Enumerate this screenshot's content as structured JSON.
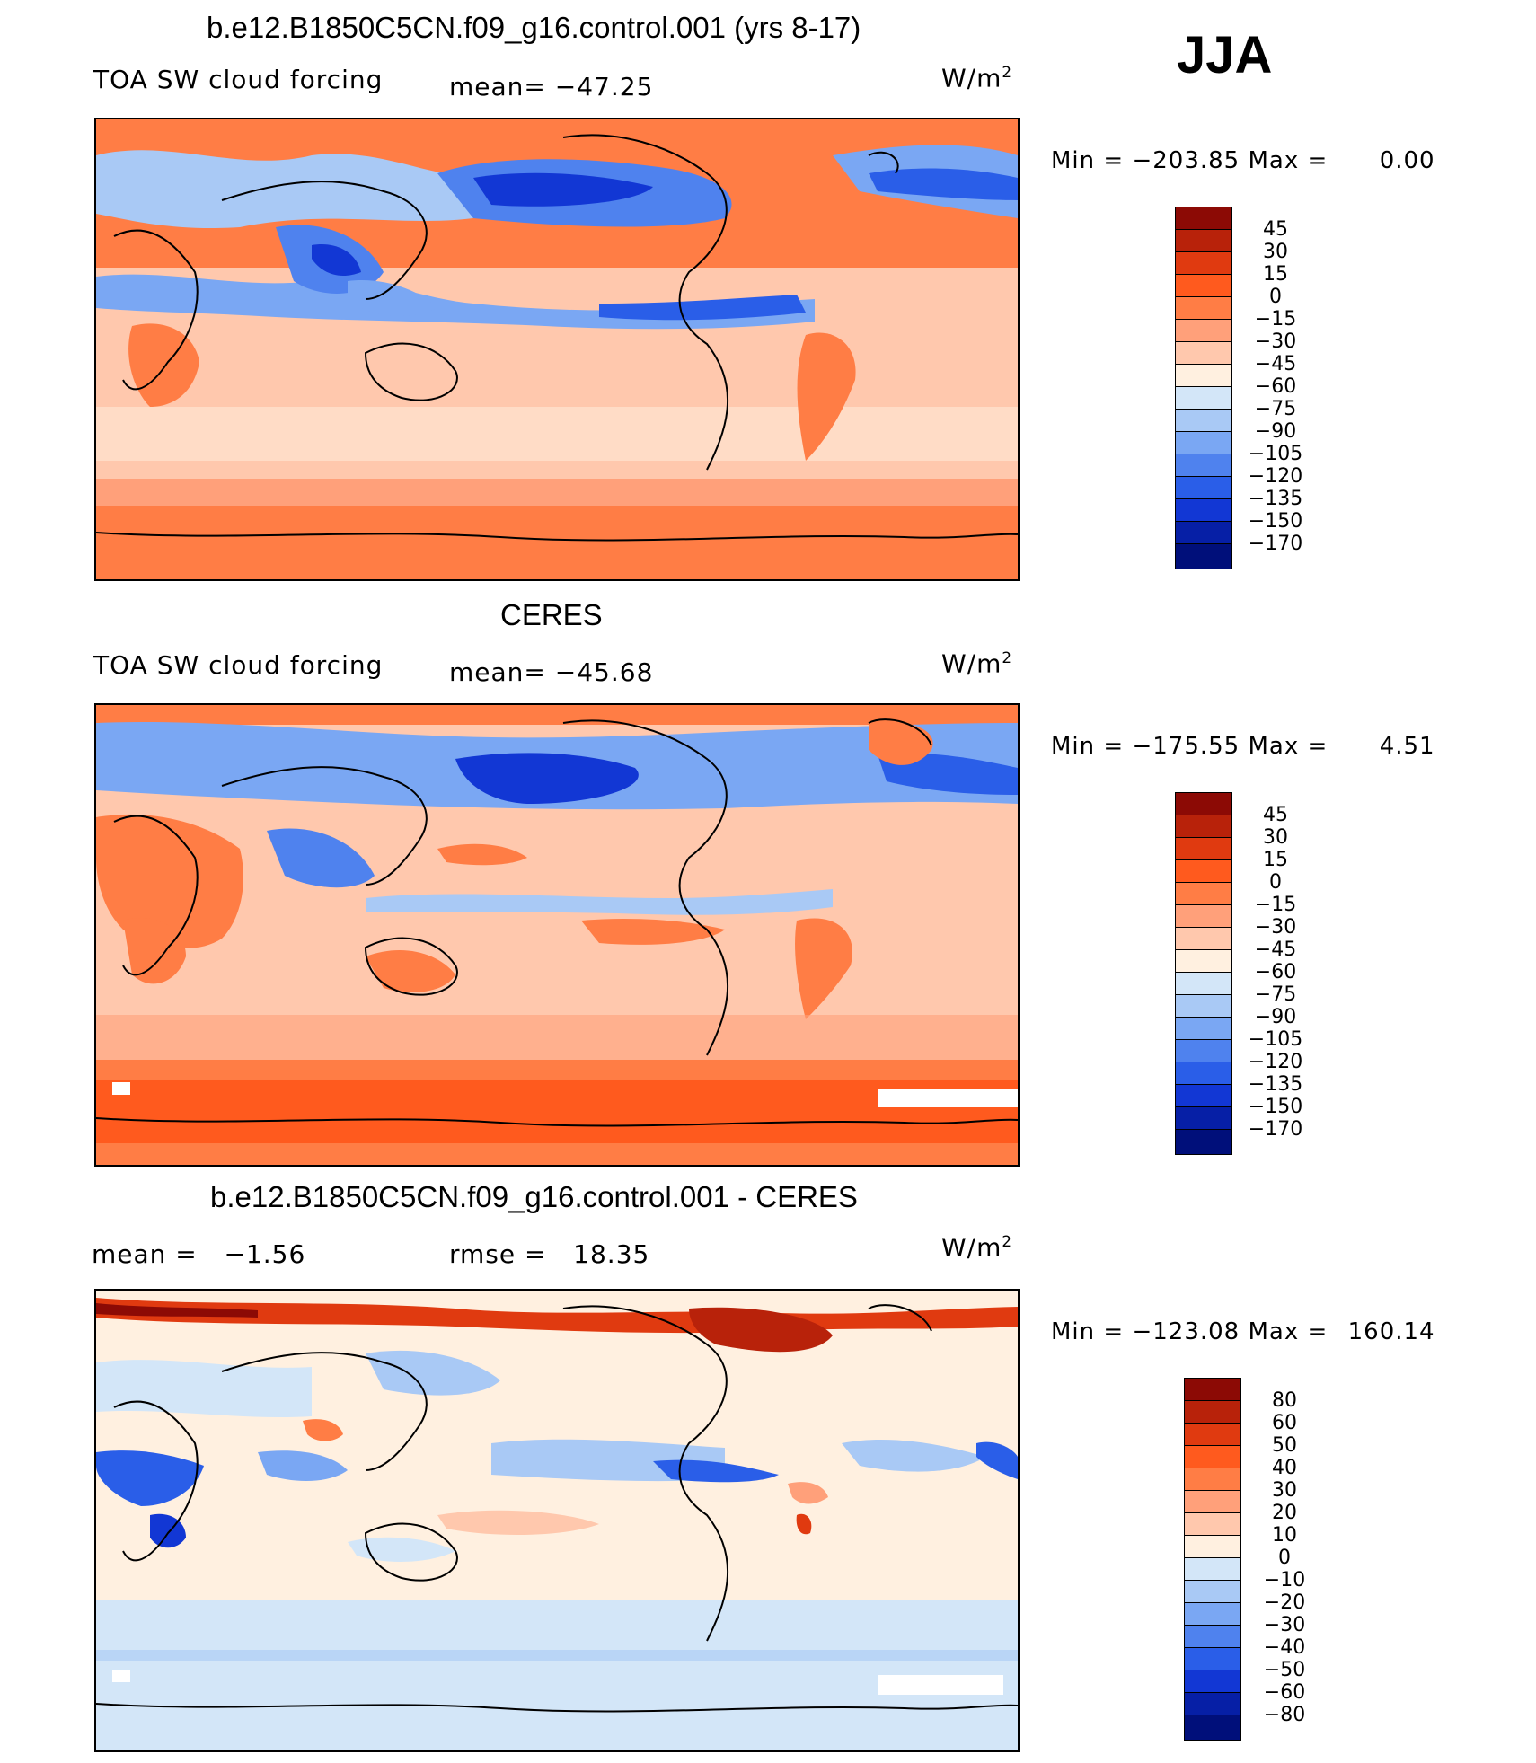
{
  "season": "JJA",
  "panels": [
    {
      "id": "model",
      "title": "b.e12.B1850C5CN.f09_g16.control.001 (yrs 8-17)",
      "left_label": "TOA SW cloud forcing",
      "stat_label": "mean= −47.25",
      "units": "W/m",
      "units_sup": "2",
      "min_label": "Min",
      "min_value": "−203.85",
      "max_label": "Max",
      "max_value": "0.00",
      "colorbar": {
        "labels": [
          "45",
          "30",
          "15",
          "0",
          "−15",
          "−30",
          "−45",
          "−60",
          "−75",
          "−90",
          "−105",
          "−120",
          "−135",
          "−150",
          "−170"
        ],
        "colors": [
          "#8c0a05",
          "#b8220a",
          "#e03a10",
          "#ff5a1e",
          "#ff7d45",
          "#ffa07a",
          "#ffc8ad",
          "#fff0e0",
          "#d3e6f8",
          "#a9c9f5",
          "#7aa7f3",
          "#4f82ee",
          "#2a5ee8",
          "#1237d4",
          "#061fa6",
          "#000f7a"
        ]
      }
    },
    {
      "id": "obs",
      "title": "CERES",
      "left_label": "TOA SW cloud forcing",
      "stat_label": "mean= −45.68",
      "units": "W/m",
      "units_sup": "2",
      "min_label": "Min",
      "min_value": "−175.55",
      "max_label": "Max",
      "max_value": "4.51",
      "colorbar": {
        "labels": [
          "45",
          "30",
          "15",
          "0",
          "−15",
          "−30",
          "−45",
          "−60",
          "−75",
          "−90",
          "−105",
          "−120",
          "−135",
          "−150",
          "−170"
        ],
        "colors": [
          "#8c0a05",
          "#b8220a",
          "#e03a10",
          "#ff5a1e",
          "#ff7d45",
          "#ffa07a",
          "#ffc8ad",
          "#fff0e0",
          "#d3e6f8",
          "#a9c9f5",
          "#7aa7f3",
          "#4f82ee",
          "#2a5ee8",
          "#1237d4",
          "#061fa6",
          "#000f7a"
        ]
      }
    },
    {
      "id": "diff",
      "title": "b.e12.B1850C5CN.f09_g16.control.001 - CERES",
      "left_label": "mean =   −1.56",
      "stat_label": "rmse =   18.35",
      "units": "W/m",
      "units_sup": "2",
      "min_label": "Min",
      "min_value": "−123.08",
      "max_label": "Max",
      "max_value": "160.14",
      "colorbar": {
        "labels": [
          "80",
          "60",
          "50",
          "40",
          "30",
          "20",
          "10",
          "0",
          "−10",
          "−20",
          "−30",
          "−40",
          "−50",
          "−60",
          "−80"
        ],
        "colors": [
          "#8c0a05",
          "#b8220a",
          "#e03a10",
          "#ff5a1e",
          "#ff7d45",
          "#ffa07a",
          "#ffc8ad",
          "#fff0e0",
          "#d3e6f8",
          "#a9c9f5",
          "#7aa7f3",
          "#4f82ee",
          "#2a5ee8",
          "#1237d4",
          "#061fa6",
          "#000f7a"
        ]
      }
    }
  ]
}
